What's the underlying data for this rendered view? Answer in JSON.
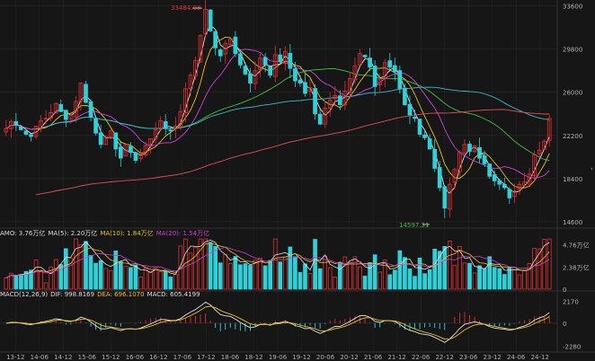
{
  "chart_data": {
    "type": "candlestick",
    "x_ticks": [
      "13-12",
      "14-06",
      "14-12",
      "15-06",
      "15-12",
      "16-06",
      "16-12",
      "17-06",
      "17-12",
      "18-06",
      "18-12",
      "19-06",
      "19-12",
      "20-06",
      "20-12",
      "21-06",
      "21-12",
      "22-06",
      "22-12",
      "23-06",
      "23-12",
      "24-06",
      "24-12"
    ],
    "price_axis": {
      "ticks": [
        "33600",
        "29800",
        "26000",
        "22200",
        "18400",
        "14600"
      ],
      "range": [
        14200,
        33800
      ]
    },
    "annotations": {
      "high": "33484.08",
      "low": "14597.31"
    },
    "volume_axis": {
      "ticks": [
        "4.76万亿",
        "2.38万亿",
        "0"
      ],
      "range": [
        0,
        5.6
      ]
    },
    "macd_axis": {
      "ticks": [
        "2170",
        "0",
        "-2280"
      ],
      "range": [
        -2700,
        2500
      ]
    },
    "volume_legend": [
      {
        "text": "AMO: 3.76万亿",
        "color": "#dddddd"
      },
      {
        "text": "MA(5): 2.20万亿",
        "color": "#dddddd"
      },
      {
        "text": "MA(10): 1.84万亿",
        "color": "#e8c020"
      },
      {
        "text": "MA(20): 1.54万亿",
        "color": "#d040d8"
      }
    ],
    "macd_legend": [
      {
        "text": "MACD(12,26,9)",
        "color": "#dddddd"
      },
      {
        "text": "DIF: 998.8169",
        "color": "#dddddd"
      },
      {
        "text": "DEA: 696.1070",
        "color": "#e8c020"
      },
      {
        "text": "MACD: 605.4199",
        "color": "#dddddd"
      }
    ],
    "colors": {
      "up": "#e03030",
      "down": "#30d0d8",
      "ma5": "#e0e0e0",
      "ma10": "#e8c020",
      "ma20": "#d040d8",
      "ma60": "#40c040",
      "ma120": "#40b8c8",
      "ma250": "#e05050",
      "dif": "#e0e0e0",
      "dea": "#e8c020"
    },
    "closes": [
      22800,
      23400,
      23100,
      22700,
      22300,
      22100,
      23000,
      23500,
      23700,
      24200,
      25000,
      24300,
      23600,
      24000,
      25200,
      26800,
      25100,
      23800,
      22400,
      21400,
      22100,
      22600,
      21000,
      20200,
      21400,
      20700,
      20000,
      20600,
      21300,
      21900,
      22700,
      23500,
      22800,
      22600,
      23000,
      24300,
      26300,
      27500,
      28800,
      31000,
      33300,
      31400,
      29900,
      29200,
      30300,
      30700,
      29400,
      28400,
      27600,
      26800,
      27900,
      29000,
      28400,
      27500,
      29300,
      28700,
      29600,
      28100,
      27000,
      26800,
      25900,
      26400,
      24100,
      23200,
      24600,
      25300,
      25700,
      24900,
      26100,
      27200,
      28300,
      29400,
      29100,
      28200,
      26500,
      27100,
      28600,
      28200,
      27800,
      26300,
      24900,
      24000,
      23700,
      22300,
      22000,
      21000,
      19300,
      17600,
      15800,
      17900,
      19200,
      20700,
      21400,
      20800,
      21300,
      20200,
      19700,
      18600,
      18200,
      17900,
      17600,
      16700,
      17300,
      17900,
      18100,
      18800,
      20500,
      20900,
      21700,
      23700
    ]
  }
}
